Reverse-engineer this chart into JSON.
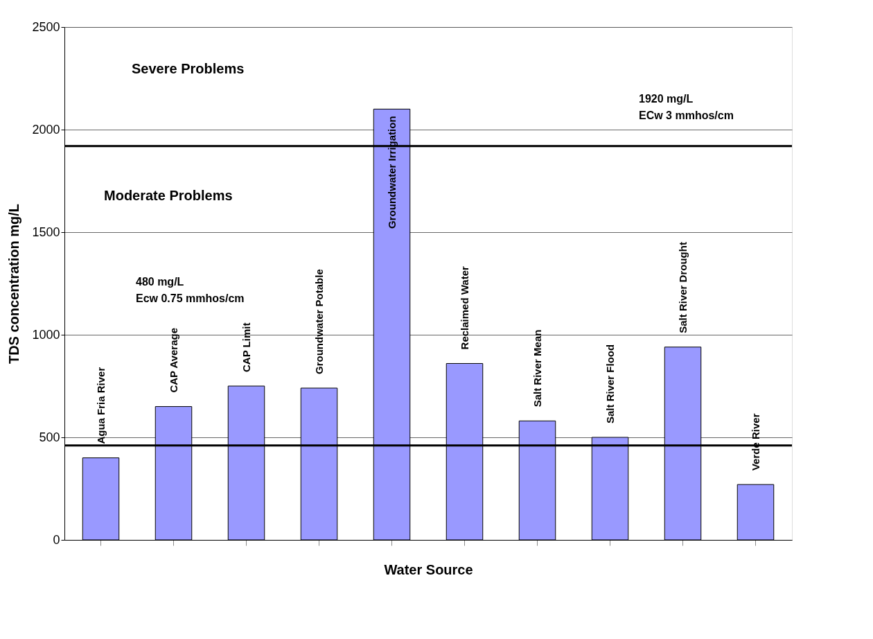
{
  "chart_data": {
    "type": "bar",
    "xlabel": "Water Source",
    "ylabel": "TDS concentration mg/L",
    "categories": [
      "Agua Fria River",
      "CAP Average",
      "CAP Limit",
      "Groundwater Potable",
      "Groundwater Irrigation",
      "Reclaimed Water",
      "Salt River Mean",
      "Salt River Flood",
      "Salt River Drought",
      "Verde River"
    ],
    "values": [
      400,
      650,
      750,
      740,
      2100,
      860,
      580,
      500,
      940,
      270
    ],
    "color": "#9999ff",
    "ylim": [
      0,
      2500
    ],
    "yticks": [
      0,
      500,
      1000,
      1500,
      2000,
      2500
    ],
    "grid": "y",
    "ref_lines": [
      {
        "axis": "y",
        "value": 1920,
        "color": "#000000"
      },
      {
        "axis": "y",
        "value": 460,
        "color": "#000000"
      }
    ],
    "annotations": [
      "Severe Problems",
      "Moderate Problems",
      "1920 mg/L\nECw 3 mmhos/cm",
      "480 mg/L\nEcw 0.75 mmhos/cm"
    ],
    "tick_labels": "y"
  }
}
